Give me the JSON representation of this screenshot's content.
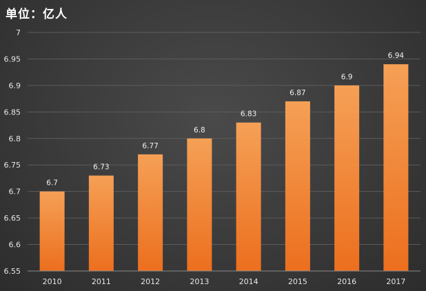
{
  "chart_data": {
    "type": "bar",
    "title": "单位：亿人",
    "categories": [
      "2010",
      "2011",
      "2012",
      "2013",
      "2014",
      "2015",
      "2016",
      "2017"
    ],
    "values": [
      6.7,
      6.73,
      6.77,
      6.8,
      6.83,
      6.87,
      6.9,
      6.94
    ],
    "data_labels": [
      "6.7",
      "6.73",
      "6.77",
      "6.8",
      "6.83",
      "6.87",
      "6.9",
      "6.94"
    ],
    "y_ticks": [
      "6.55",
      "6.6",
      "6.65",
      "6.7",
      "6.75",
      "6.8",
      "6.85",
      "6.9",
      "6.95",
      "7"
    ],
    "ylim": [
      6.55,
      7
    ],
    "grid": true,
    "legend": "none",
    "colors": {
      "bar_top": "#f5a056",
      "bar_bottom": "#ec6f1e",
      "grid": "#5c5c5c",
      "axis": "#8a8a8a"
    }
  }
}
